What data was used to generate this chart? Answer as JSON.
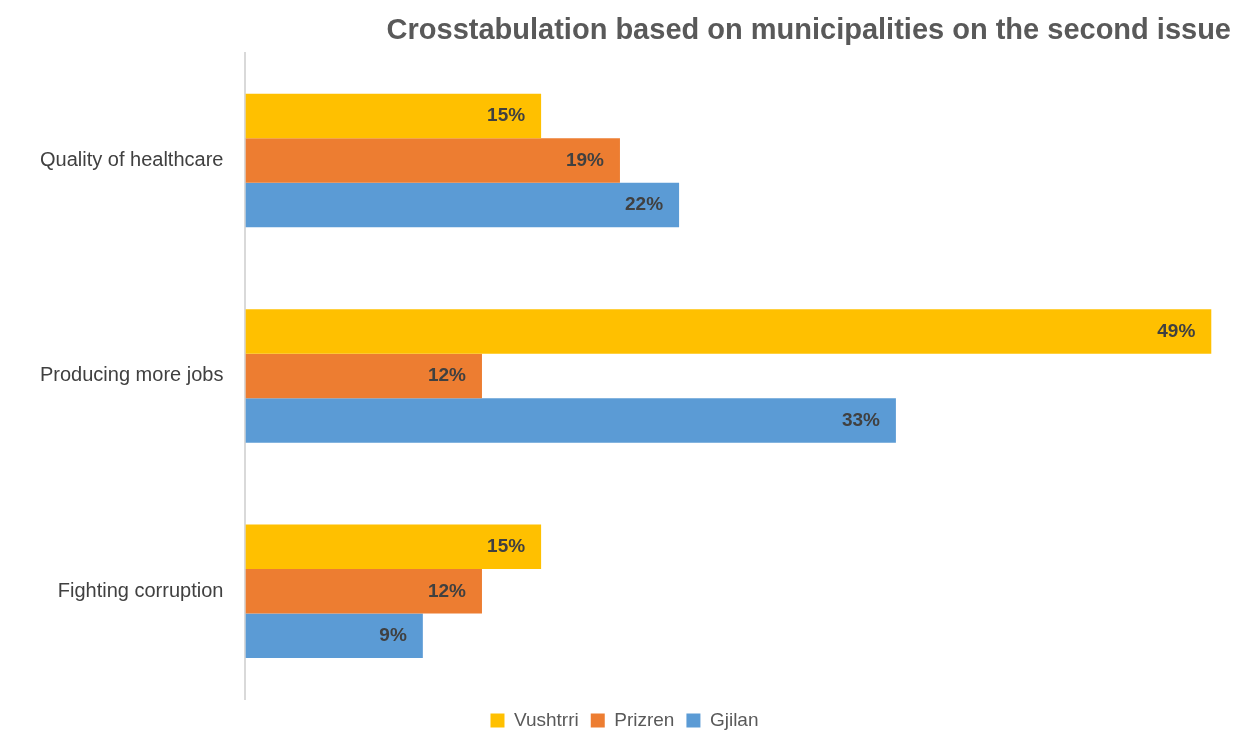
{
  "chart_data": {
    "type": "bar",
    "orientation": "horizontal",
    "title": "Crosstabulation based on municipalities on the second issue",
    "categories": [
      "Quality of healthcare",
      "Producing more jobs",
      "Fighting corruption"
    ],
    "series": [
      {
        "name": "Vushtrri",
        "color": "#ffc000",
        "values": [
          15,
          49,
          15
        ],
        "value_labels": [
          "15%",
          "49%",
          "15%"
        ]
      },
      {
        "name": "Prizren",
        "color": "#ed7d31",
        "values": [
          19,
          12,
          12
        ],
        "value_labels": [
          "19%",
          "12%",
          "12%"
        ]
      },
      {
        "name": "Gjilan",
        "color": "#5b9bd5",
        "values": [
          22,
          33,
          9
        ],
        "value_labels": [
          "22%",
          "33%",
          "9%"
        ]
      }
    ],
    "legend": "bottom"
  }
}
